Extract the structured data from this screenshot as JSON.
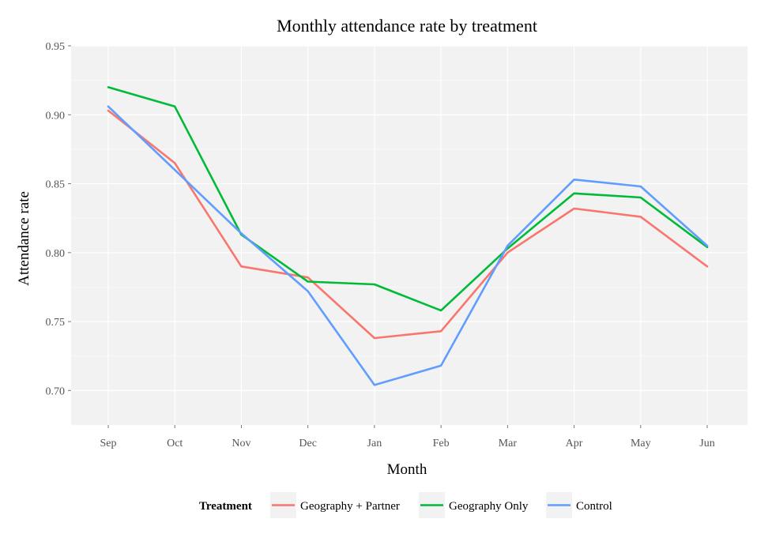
{
  "chart_data": {
    "type": "line",
    "title": "Monthly attendance rate by treatment",
    "xlabel": "Month",
    "ylabel": "Attendance rate",
    "categories": [
      "Sep",
      "Oct",
      "Nov",
      "Dec",
      "Jan",
      "Feb",
      "Mar",
      "Apr",
      "May",
      "Jun"
    ],
    "ylim": [
      0.675,
      0.95
    ],
    "yticks": [
      "0.70",
      "0.75",
      "0.80",
      "0.85",
      "0.90",
      "0.95"
    ],
    "grid": true,
    "legend": {
      "title": "Treatment",
      "placement": "bottom"
    },
    "series": [
      {
        "name": "Geography + Partner",
        "color": "#F8766D",
        "values": [
          0.903,
          0.865,
          0.79,
          0.782,
          0.738,
          0.743,
          0.8,
          0.832,
          0.826,
          0.79
        ]
      },
      {
        "name": "Geography Only",
        "color": "#00BA38",
        "values": [
          0.92,
          0.906,
          0.813,
          0.779,
          0.777,
          0.758,
          0.803,
          0.843,
          0.84,
          0.804
        ]
      },
      {
        "name": "Control",
        "color": "#619CFF",
        "values": [
          0.906,
          0.86,
          0.814,
          0.772,
          0.704,
          0.718,
          0.805,
          0.853,
          0.848,
          0.805
        ]
      }
    ]
  }
}
